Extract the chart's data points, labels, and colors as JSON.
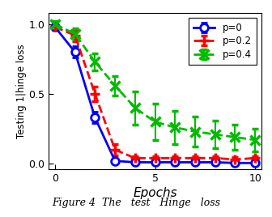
{
  "epochs": [
    0,
    1,
    2,
    3,
    4,
    5,
    6,
    7,
    8,
    9,
    10
  ],
  "p0_mean": [
    0.98,
    0.8,
    0.33,
    0.02,
    0.01,
    0.01,
    0.01,
    0.01,
    0.01,
    0.005,
    0.005
  ],
  "p0_err": [
    0.02,
    0.04,
    0.04,
    0.01,
    0.005,
    0.005,
    0.005,
    0.005,
    0.005,
    0.003,
    0.003
  ],
  "p02_mean": [
    0.98,
    0.92,
    0.5,
    0.1,
    0.04,
    0.04,
    0.04,
    0.04,
    0.04,
    0.03,
    0.04
  ],
  "p02_err": [
    0.02,
    0.04,
    0.05,
    0.04,
    0.015,
    0.015,
    0.015,
    0.015,
    0.015,
    0.015,
    0.015
  ],
  "p04_mean": [
    1.0,
    0.93,
    0.73,
    0.56,
    0.4,
    0.3,
    0.26,
    0.23,
    0.21,
    0.19,
    0.17
  ],
  "p04_err": [
    0.02,
    0.04,
    0.06,
    0.07,
    0.12,
    0.13,
    0.12,
    0.11,
    0.1,
    0.09,
    0.08
  ],
  "p0_color": "#0000ff",
  "p02_color": "#ff0000",
  "p04_color": "#00bb00",
  "xlabel": "Epochs",
  "ylabel": "Testing 1|hinge loss",
  "xlim": [
    -0.3,
    10.3
  ],
  "ylim": [
    -0.04,
    1.08
  ],
  "xticks": [
    0,
    5,
    10
  ],
  "yticks": [
    0,
    0.5,
    1
  ],
  "legend_labels": [
    "p=0",
    "p=0.2",
    "p=0.4"
  ],
  "caption": "Figure 4  The   test   Hinge   loss",
  "figsize": [
    3.36,
    2.68
  ],
  "dpi": 100
}
